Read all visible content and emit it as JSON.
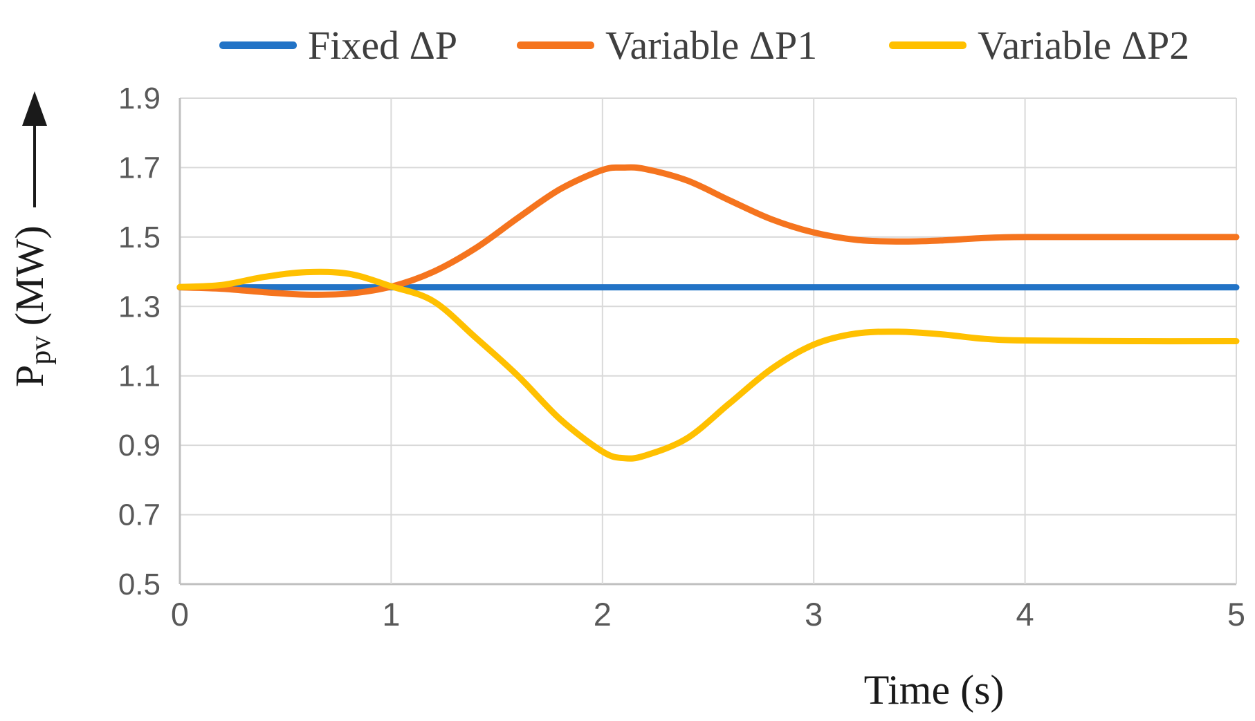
{
  "figure": {
    "xlabel": "Time (s)",
    "ylabel_main": "P",
    "ylabel_sub": "pv",
    "ylabel_unit": " (MW)"
  },
  "chart_data": {
    "type": "line",
    "title": "",
    "xlabel": "Time (s)",
    "ylabel": "Ppv (MW)",
    "xlim": [
      0,
      5
    ],
    "ylim": [
      0.5,
      1.9
    ],
    "x_ticks": [
      "0",
      "1",
      "2",
      "3",
      "4",
      "5"
    ],
    "y_ticks": [
      "0.5",
      "0.7",
      "0.9",
      "1.1",
      "1.3",
      "1.5",
      "1.7",
      "1.9"
    ],
    "grid": true,
    "legend_position": "top-center",
    "grid_color": "#d9d9d9",
    "axis_color": "#bfbfbf",
    "tick_label_color": "#595959",
    "series": [
      {
        "name": "Fixed ΔP",
        "color": "#2273C6",
        "x": [
          0,
          5
        ],
        "y": [
          1.355,
          1.355
        ]
      },
      {
        "name": "Variable ΔP1",
        "color": "#F5741E",
        "x": [
          0,
          0.2,
          0.4,
          0.6,
          0.8,
          1.0,
          1.2,
          1.4,
          1.6,
          1.8,
          2.0,
          2.1,
          2.2,
          2.4,
          2.6,
          2.8,
          3.0,
          3.2,
          3.4,
          3.6,
          3.8,
          4.0,
          4.5,
          5.0
        ],
        "y": [
          1.355,
          1.351,
          1.341,
          1.334,
          1.337,
          1.357,
          1.4,
          1.468,
          1.555,
          1.638,
          1.693,
          1.7,
          1.696,
          1.663,
          1.606,
          1.551,
          1.513,
          1.492,
          1.487,
          1.49,
          1.497,
          1.5,
          1.5,
          1.5
        ]
      },
      {
        "name": "Variable ΔP2",
        "color": "#FFC000",
        "x": [
          0,
          0.2,
          0.4,
          0.6,
          0.8,
          1.0,
          1.2,
          1.4,
          1.6,
          1.8,
          2.0,
          2.1,
          2.2,
          2.4,
          2.6,
          2.8,
          3.0,
          3.2,
          3.4,
          3.6,
          3.8,
          4.0,
          4.5,
          5.0
        ],
        "y": [
          1.356,
          1.362,
          1.385,
          1.399,
          1.394,
          1.358,
          1.315,
          1.21,
          1.1,
          0.975,
          0.882,
          0.863,
          0.87,
          0.92,
          1.02,
          1.12,
          1.19,
          1.222,
          1.227,
          1.22,
          1.207,
          1.202,
          1.2,
          1.2
        ]
      }
    ]
  }
}
